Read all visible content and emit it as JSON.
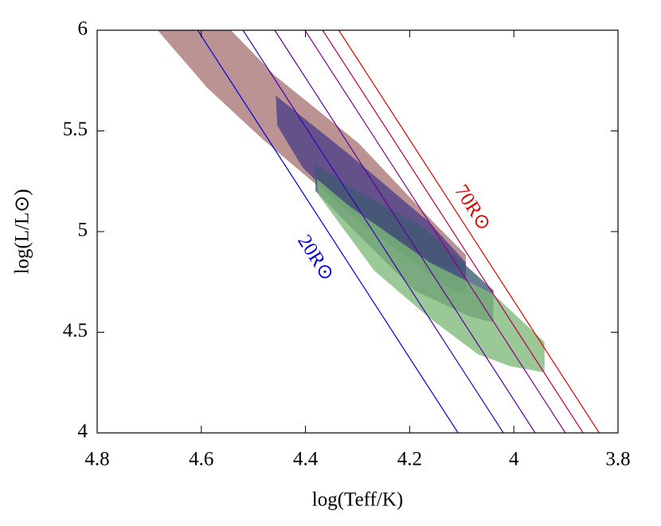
{
  "chart_data": {
    "type": "region",
    "xlabel": "log(Teff/K)",
    "ylabel": "log(L/L⊙)",
    "xlim": [
      4.8,
      3.8
    ],
    "ylim": [
      4,
      6
    ],
    "xticks": [
      4.8,
      4.6,
      4.4,
      4.2,
      4,
      3.8
    ],
    "yticks": [
      4,
      4.5,
      5,
      5.5,
      6
    ],
    "regions": [
      {
        "color": "#a87474",
        "x": [
          4.684,
          4.543,
          4.459,
          4.298,
          4.153,
          4.092,
          4.092,
          4.161,
          4.329,
          4.482,
          4.589
        ],
        "y": [
          6,
          6,
          5.775,
          5.439,
          5.043,
          4.885,
          4.806,
          4.846,
          5.123,
          5.458,
          5.715
        ]
      },
      {
        "color": "#4b3f86",
        "x": [
          4.457,
          4.448,
          4.314,
          4.161,
          4.092,
          4.092,
          4.13,
          4.314,
          4.406,
          4.454
        ],
        "y": [
          5.676,
          5.656,
          5.379,
          5.043,
          4.846,
          4.688,
          4.727,
          5.083,
          5.32,
          5.526
        ]
      },
      {
        "color": "#3d5873",
        "x": [
          4.381,
          4.314,
          4.176,
          4.115,
          4.039,
          4.039,
          4.084,
          4.191,
          4.314,
          4.381
        ],
        "y": [
          5.332,
          5.221,
          5.024,
          4.885,
          4.708,
          4.549,
          4.577,
          4.708,
          5.024,
          5.202
        ]
      },
      {
        "color": "#7db879",
        "x": [
          4.378,
          4.314,
          4.161,
          4.039,
          3.941,
          3.941,
          4.008,
          4.069,
          4.161,
          4.268,
          4.375
        ],
        "y": [
          5.261,
          5.123,
          4.846,
          4.688,
          4.451,
          4.3,
          4.332,
          4.391,
          4.569,
          4.806,
          5.182
        ]
      }
    ],
    "lines": [
      {
        "color": "#0000dd",
        "x": [
          4.607,
          4.107
        ],
        "y": [
          6,
          4
        ]
      },
      {
        "color": "#3a00b0",
        "x": [
          4.52,
          4.02
        ],
        "y": [
          6,
          4
        ]
      },
      {
        "color": "#5e0099",
        "x": [
          4.459,
          3.959
        ],
        "y": [
          6,
          4
        ]
      },
      {
        "color": "#8a0088",
        "x": [
          4.401,
          3.901
        ],
        "y": [
          6,
          4
        ]
      },
      {
        "color": "#b8004c",
        "x": [
          4.367,
          3.867
        ],
        "y": [
          6,
          4
        ]
      },
      {
        "color": "#e00000",
        "x": [
          4.336,
          3.836
        ],
        "y": [
          6,
          4
        ]
      }
    ],
    "annotations": [
      {
        "text": "20R⊙",
        "color": "#0000dd"
      },
      {
        "text": "70R⊙",
        "color": "#e00000"
      }
    ]
  }
}
